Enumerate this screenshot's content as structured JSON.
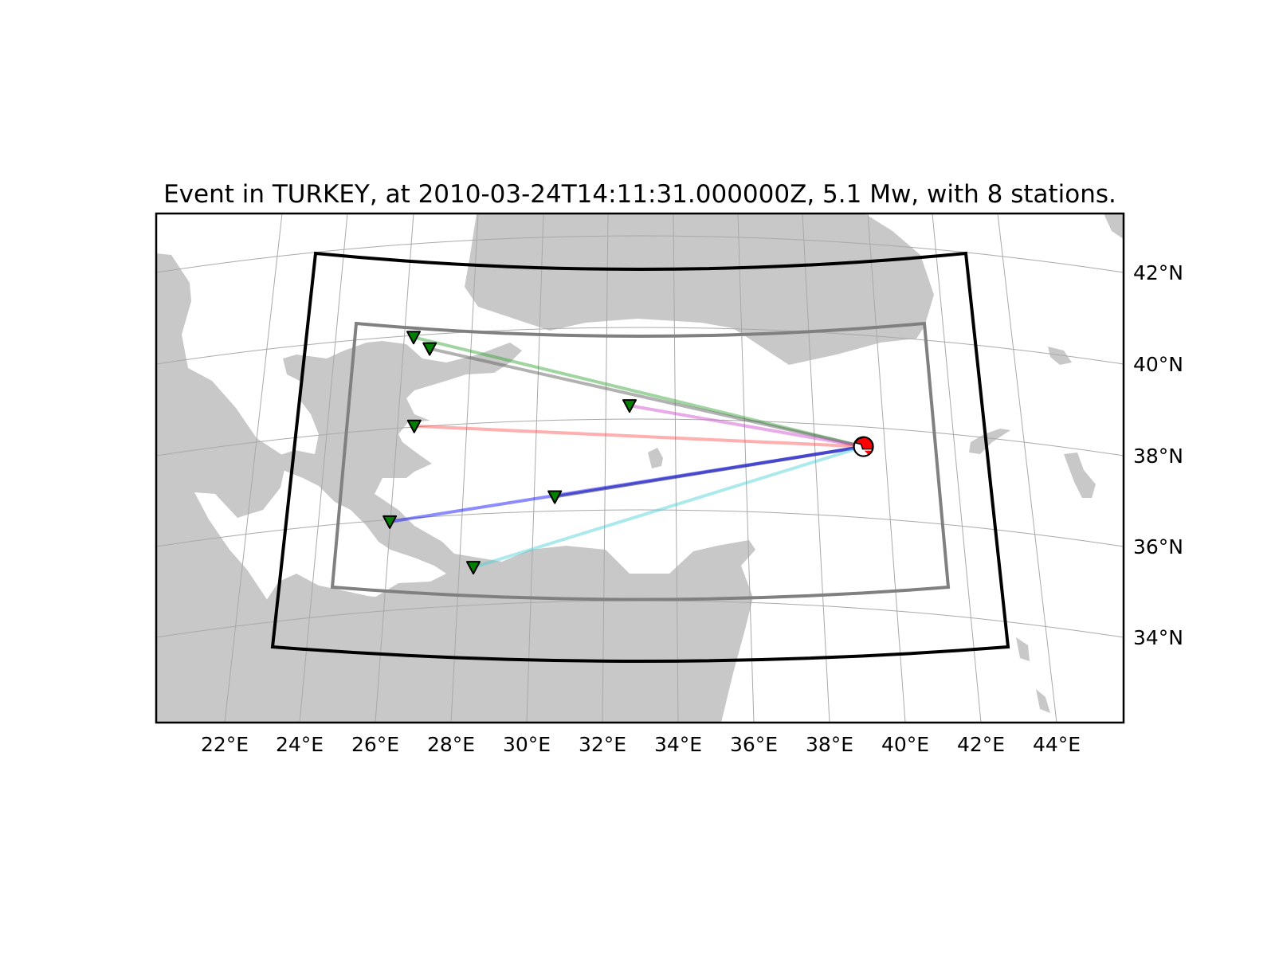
{
  "title": "Event in TURKEY, at 2010-03-24T14:11:31.000000Z, 5.1 Mw, with 8 stations.",
  "axes": {
    "x_ticks": [
      "22°E",
      "24°E",
      "26°E",
      "28°E",
      "30°E",
      "32°E",
      "34°E",
      "36°E",
      "38°E",
      "40°E",
      "42°E",
      "44°E"
    ],
    "y_ticks": [
      "42°N",
      "40°N",
      "38°N",
      "36°N",
      "34°N"
    ]
  },
  "colors": {
    "land": "#c8c8c8",
    "ocean": "#ffffff",
    "graticule": "#a9a9a9",
    "outer_box": "#000000",
    "inner_box": "#808080",
    "station_fill": "#008000",
    "event_fill": "#ff0000"
  },
  "event": {
    "region": "TURKEY",
    "time": "2010-03-24T14:11:31.000000Z",
    "magnitude": "5.1 Mw",
    "lon": 39.4,
    "lat": 38.2,
    "marker": "beachball"
  },
  "stations": [
    {
      "lon": 26.3,
      "lat": 40.6,
      "ray_color": "#2ca02c"
    },
    {
      "lon": 26.8,
      "lat": 40.35,
      "ray_color": "#555555"
    },
    {
      "lon": 32.7,
      "lat": 39.1,
      "ray_color": "#cc44cc"
    },
    {
      "lon": 26.5,
      "lat": 38.65,
      "ray_color": "#ff4d4d"
    },
    {
      "lon": 30.6,
      "lat": 37.1,
      "ray_color": "#d6d66f"
    },
    {
      "lon": 30.6,
      "lat": 37.1,
      "ray_color": "#00008b"
    },
    {
      "lon": 26.0,
      "lat": 36.55,
      "ray_color": "#0000ff"
    },
    {
      "lon": 28.4,
      "lat": 35.55,
      "ray_color": "#48cfd6"
    }
  ]
}
